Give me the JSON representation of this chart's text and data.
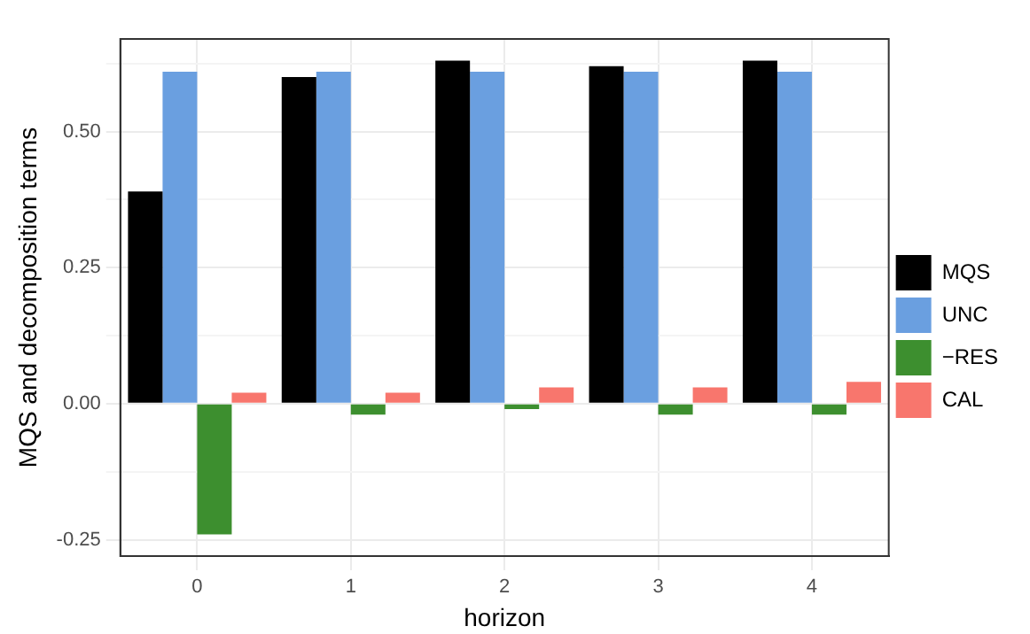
{
  "chart_data": {
    "type": "bar",
    "xlabel": "horizon",
    "ylabel": "MQS and decomposition terms",
    "categories": [
      "0",
      "1",
      "2",
      "3",
      "4"
    ],
    "series": [
      {
        "name": "MQS",
        "color": "#000000",
        "values": [
          0.39,
          0.6,
          0.63,
          0.62,
          0.63
        ]
      },
      {
        "name": "UNC",
        "color": "#6a9fe0",
        "values": [
          0.61,
          0.61,
          0.61,
          0.61,
          0.61
        ]
      },
      {
        "name": "−RES",
        "color": "#3d8f2f",
        "values": [
          -0.24,
          -0.02,
          -0.01,
          -0.02,
          -0.02
        ]
      },
      {
        "name": "CAL",
        "color": "#f8766d",
        "values": [
          0.02,
          0.02,
          0.03,
          0.03,
          0.04
        ]
      }
    ],
    "ylim": [
      -0.28,
      0.67
    ],
    "yticks": [
      {
        "value": -0.25,
        "label": "-0.25"
      },
      {
        "value": -0.125,
        "label": null
      },
      {
        "value": 0,
        "label": "0.00"
      },
      {
        "value": 0.125,
        "label": null
      },
      {
        "value": 0.25,
        "label": "0.25"
      },
      {
        "value": 0.375,
        "label": null
      },
      {
        "value": 0.5,
        "label": "0.50"
      },
      {
        "value": 0.625,
        "label": null
      }
    ],
    "grid": true,
    "legend": "right"
  }
}
